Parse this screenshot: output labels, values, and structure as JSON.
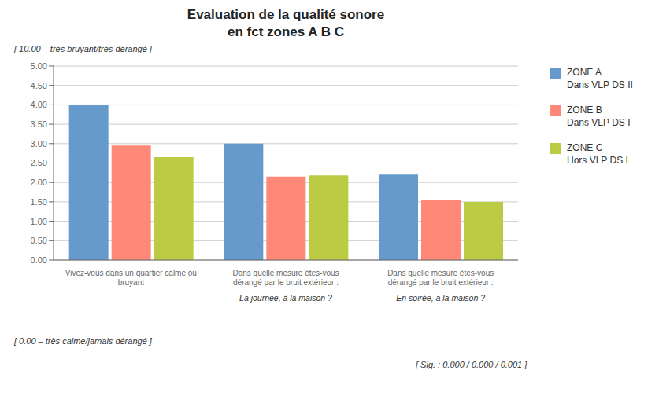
{
  "chart_data": {
    "type": "bar",
    "title": "Evaluation de la qualité sonore\nen fct zones A B C",
    "categories": [
      "Vivez-vous dans un quartier calme ou\nbruyant",
      "Dans quelle mesure êtes-vous\ndérangé par le bruit extérieur :",
      "Dans quelle mesure êtes-vous\ndérangé par le bruit extérieur :"
    ],
    "sub_labels": [
      null,
      "La journée, à la maison ?",
      "En soirée, à la maison ?"
    ],
    "series": [
      {
        "name": "ZONE A\nDans VLP DS II",
        "color": "#6699CC",
        "values": [
          4.0,
          3.0,
          2.2
        ]
      },
      {
        "name": "ZONE B\nDans VLP DS I",
        "color": "#FF8878",
        "values": [
          2.95,
          2.15,
          1.55
        ]
      },
      {
        "name": "ZONE C\nHors VLP DS I",
        "color": "#BBCC44",
        "values": [
          2.65,
          2.18,
          1.5
        ]
      }
    ],
    "ylim": [
      0,
      5.0
    ],
    "yticks": [
      {
        "value": 0,
        "label": "0.00"
      },
      {
        "value": 0.5,
        "label": "0.50"
      },
      {
        "value": 1,
        "label": "1.00"
      },
      {
        "value": 1.5,
        "label": "1.50"
      },
      {
        "value": 2,
        "label": "2.00"
      },
      {
        "value": 2.5,
        "label": "2.50"
      },
      {
        "value": 3,
        "label": "3.00"
      },
      {
        "value": 3.5,
        "label": "3.50"
      },
      {
        "value": 4,
        "label": "4.00"
      },
      {
        "value": 4.5,
        "label": "4.50"
      },
      {
        "value": 5,
        "label": "5.00"
      }
    ],
    "grid": true,
    "legend": "right",
    "annotations": [
      "[ 10.00 – très bruyant/très dérangé ]",
      "[ 0.00 – très calme/jamais dérangé ]",
      "[ Sig. : 0.000 / 0.000 / 0.001 ]"
    ]
  }
}
